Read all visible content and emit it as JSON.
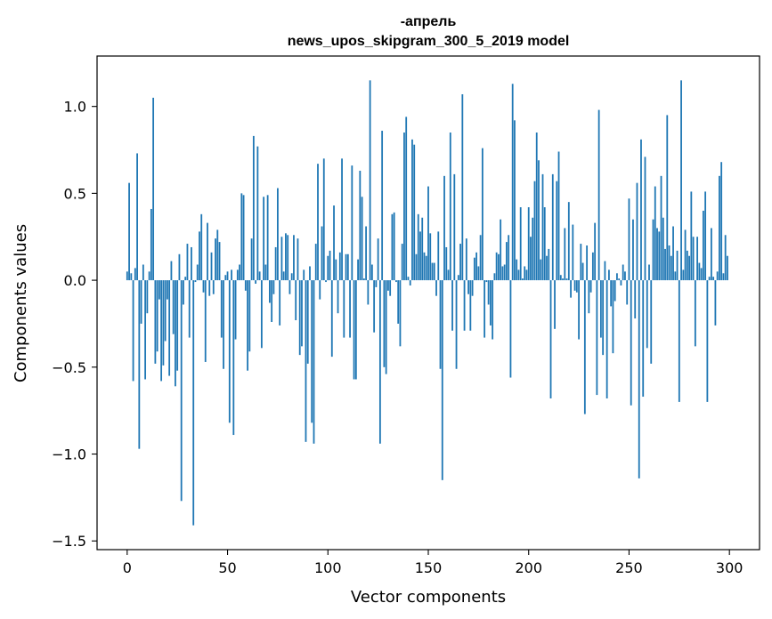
{
  "chart_data": {
    "type": "bar",
    "title_line1": "-апрель",
    "title_line2": "news_upos_skipgram_300_5_2019 model",
    "xlabel": "Vector components",
    "ylabel": "Components values",
    "xlim": [
      -15,
      315
    ],
    "ylim": [
      -1.55,
      1.29
    ],
    "x_ticks": [
      0,
      50,
      100,
      150,
      200,
      250,
      300
    ],
    "x_tick_labels": [
      "0",
      "50",
      "100",
      "150",
      "200",
      "250",
      "300"
    ],
    "y_ticks": [
      -1.5,
      -1.0,
      -0.5,
      0.0,
      0.5,
      1.0
    ],
    "y_tick_labels": [
      "−1.5",
      "−1.0",
      "−0.5",
      "0.0",
      "0.5",
      "1.0"
    ],
    "bar_color": "#1f77b4",
    "values": [
      0.05,
      0.56,
      0.04,
      -0.58,
      0.07,
      0.73,
      -0.97,
      -0.25,
      0.09,
      -0.57,
      -0.19,
      0.05,
      0.41,
      1.05,
      -0.48,
      -0.41,
      -0.11,
      -0.58,
      -0.49,
      -0.35,
      -0.11,
      -0.55,
      0.11,
      -0.31,
      -0.61,
      -0.52,
      0.15,
      -1.27,
      -0.14,
      0.02,
      0.21,
      -0.33,
      0.19,
      -1.41,
      -0.01,
      0.09,
      0.28,
      0.38,
      -0.07,
      -0.47,
      0.33,
      -0.09,
      0.16,
      -0.08,
      0.24,
      0.29,
      0.22,
      -0.33,
      -0.51,
      0.03,
      0.05,
      -0.82,
      0.06,
      -0.89,
      -0.34,
      0.06,
      0.09,
      0.5,
      0.49,
      -0.06,
      -0.52,
      -0.41,
      0.24,
      0.83,
      -0.02,
      0.77,
      0.05,
      -0.39,
      0.48,
      0.09,
      0.49,
      -0.13,
      -0.24,
      -0.08,
      0.19,
      0.53,
      -0.26,
      0.25,
      0.05,
      0.27,
      0.26,
      -0.08,
      0.04,
      0.26,
      -0.23,
      0.24,
      -0.43,
      -0.38,
      0.06,
      -0.93,
      -0.48,
      0.08,
      -0.82,
      -0.94,
      0.21,
      0.67,
      -0.11,
      0.31,
      0.7,
      -0.01,
      0.14,
      0.17,
      -0.44,
      0.43,
      0.12,
      -0.19,
      0.16,
      0.7,
      -0.33,
      0.15,
      0.15,
      -0.33,
      0.66,
      -0.57,
      -0.57,
      0.12,
      0.63,
      0.48,
      0.01,
      0.31,
      -0.14,
      1.15,
      0.09,
      -0.3,
      -0.04,
      0.24,
      -0.94,
      0.86,
      -0.5,
      -0.54,
      -0.06,
      -0.09,
      0.38,
      0.39,
      -0.01,
      -0.25,
      -0.38,
      0.21,
      0.85,
      0.94,
      0.02,
      -0.03,
      0.81,
      0.78,
      0.15,
      0.38,
      0.28,
      0.36,
      0.16,
      0.14,
      0.54,
      0.27,
      0.1,
      0.1,
      -0.09,
      0.28,
      -0.51,
      -1.15,
      0.6,
      0.19,
      0.06,
      0.85,
      -0.29,
      0.61,
      -0.51,
      0.03,
      0.21,
      1.07,
      -0.29,
      0.24,
      -0.08,
      -0.29,
      -0.09,
      0.13,
      0.16,
      0.08,
      0.26,
      0.76,
      -0.33,
      -0.01,
      -0.14,
      -0.26,
      -0.34,
      0.04,
      0.16,
      0.15,
      0.35,
      0.08,
      0.09,
      0.22,
      0.26,
      -0.56,
      1.13,
      0.92,
      0.12,
      0.06,
      0.42,
      0.01,
      0.08,
      0.06,
      0.42,
      0.25,
      0.36,
      0.57,
      0.85,
      0.69,
      0.12,
      0.61,
      0.42,
      0.14,
      0.18,
      -0.68,
      0.61,
      -0.28,
      0.57,
      0.74,
      0.03,
      0.01,
      0.3,
      0.01,
      0.45,
      -0.1,
      0.32,
      -0.06,
      -0.07,
      -0.34,
      0.21,
      0.1,
      -0.77,
      0.2,
      -0.19,
      -0.07,
      0.16,
      0.33,
      -0.66,
      0.98,
      -0.33,
      -0.43,
      0.11,
      -0.68,
      0.06,
      -0.15,
      -0.42,
      -0.12,
      0.04,
      0.01,
      -0.03,
      0.09,
      0.05,
      -0.14,
      0.47,
      -0.72,
      0.35,
      -0.22,
      0.56,
      -1.14,
      0.81,
      -0.67,
      0.71,
      -0.39,
      0.09,
      -0.48,
      0.35,
      0.54,
      0.3,
      0.28,
      0.6,
      0.36,
      0.18,
      0.95,
      0.2,
      0.14,
      0.31,
      0.05,
      0.17,
      -0.7,
      1.15,
      0.06,
      0.29,
      0.17,
      0.14,
      0.51,
      0.25,
      -0.38,
      0.25,
      0.1,
      0.07,
      0.4,
      0.51,
      -0.7,
      0.02,
      0.3,
      0.02,
      -0.26,
      0.05,
      0.6,
      0.68,
      0.04,
      0.26,
      0.14
    ]
  }
}
